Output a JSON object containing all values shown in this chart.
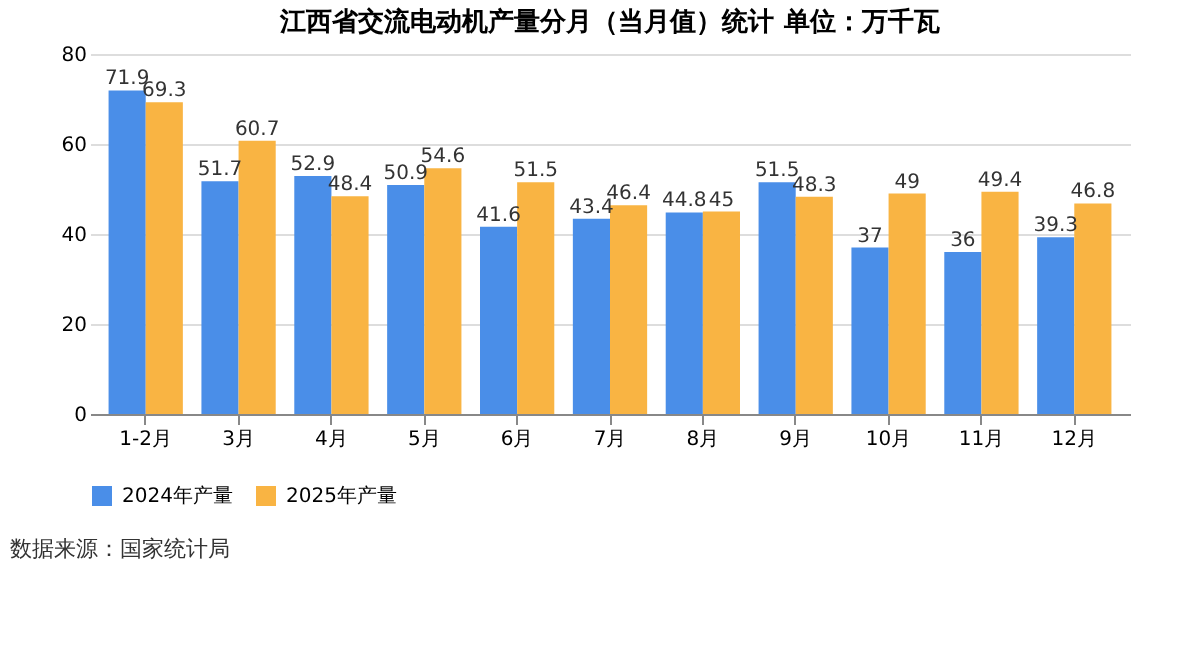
{
  "chart_data": {
    "type": "bar",
    "title": "江西省交流电动机产量分月（当月值）统计  单位：万千瓦",
    "categories": [
      "1-2月",
      "3月",
      "4月",
      "5月",
      "6月",
      "7月",
      "8月",
      "9月",
      "10月",
      "11月",
      "12月"
    ],
    "series": [
      {
        "name": "2024年产量",
        "color": "#4a8ee8",
        "values": [
          71.9,
          51.7,
          52.9,
          50.9,
          41.6,
          43.4,
          44.8,
          51.5,
          37,
          36,
          39.3
        ]
      },
      {
        "name": "2025年产量",
        "color": "#f9b443",
        "values": [
          69.3,
          60.7,
          48.4,
          54.6,
          51.5,
          46.4,
          45,
          48.3,
          49,
          49.4,
          46.8
        ]
      }
    ],
    "ylim": [
      0,
      80
    ],
    "yticks": [
      0,
      20,
      40,
      60,
      80
    ],
    "grid": "y",
    "legend": "bottom",
    "data_labels": true,
    "annotations": [
      "数据来源：国家统计局"
    ]
  }
}
